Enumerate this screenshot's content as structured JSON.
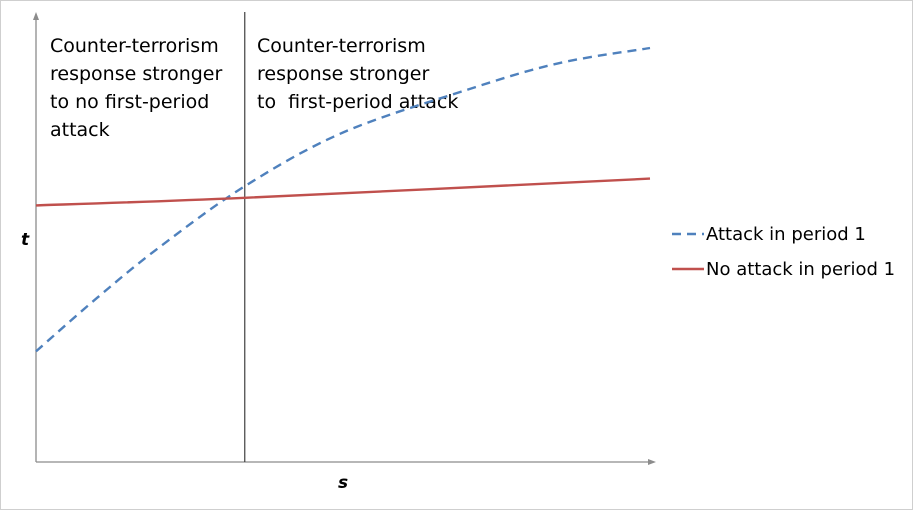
{
  "chart_data": {
    "type": "line",
    "title": "",
    "xlabel": "s",
    "ylabel": "t",
    "xlim": [
      0,
      1
    ],
    "ylim": [
      0,
      1
    ],
    "grid": false,
    "legend_position": "right",
    "divider_x": 0.34,
    "regions": [
      {
        "lines": [
          "Counter-terrorism",
          "response stronger",
          "to no first-period",
          "attack"
        ]
      },
      {
        "lines": [
          "Counter-terrorism",
          "response stronger",
          "to  first-period attack"
        ]
      }
    ],
    "series": [
      {
        "name": "Attack in period 1",
        "color": "#4f81bd",
        "style": "dashed",
        "x": [
          0,
          0.1,
          0.2,
          0.34,
          0.5,
          0.7,
          0.85,
          1.0
        ],
        "y": [
          0.21,
          0.35,
          0.48,
          0.64,
          0.78,
          0.89,
          0.96,
          1.0
        ]
      },
      {
        "name": "No attack in period 1",
        "color": "#c0504d",
        "style": "solid",
        "x": [
          0,
          0.34,
          1.0
        ],
        "y": [
          0.59,
          0.61,
          0.66
        ]
      }
    ]
  }
}
